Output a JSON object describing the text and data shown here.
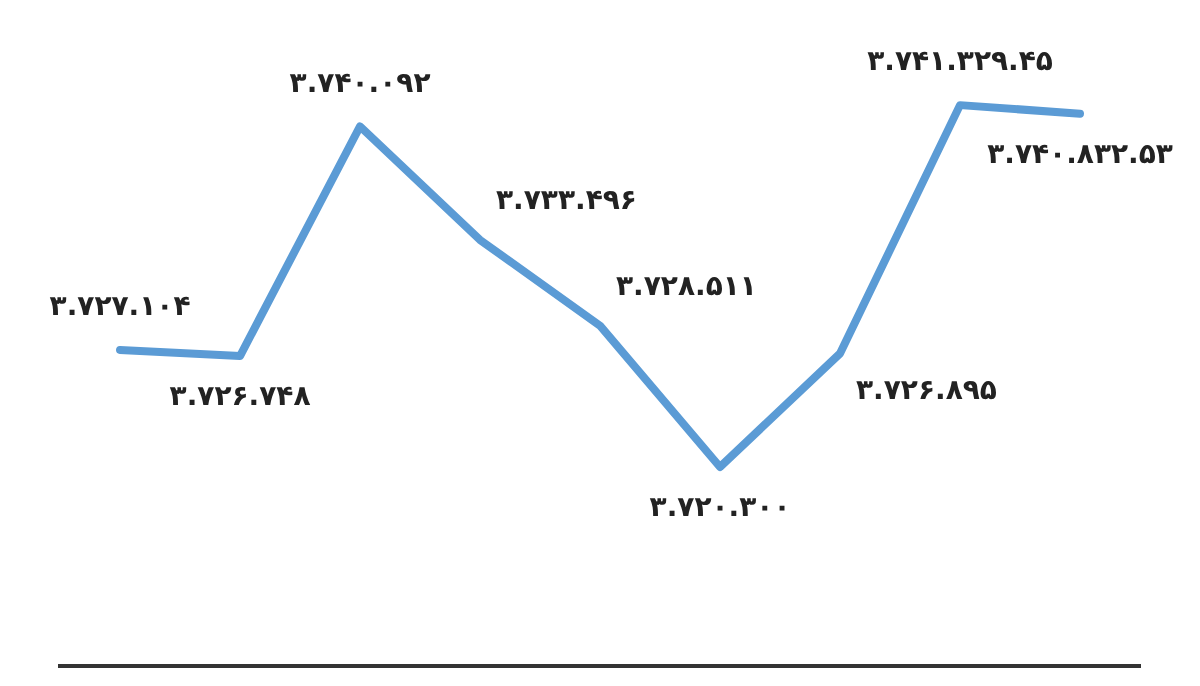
{
  "chart_data": {
    "type": "line",
    "categories": [
      null,
      null,
      null,
      null,
      null,
      null,
      null,
      null,
      null
    ],
    "series": [
      {
        "color": "#5b9bd5",
        "values": [
          3727104,
          3726748,
          3740092,
          3733496,
          3728511,
          3720300,
          3726895,
          3741329.45,
          3740832.53
        ],
        "value_labels": [
          "۳.۷۲۷.۱۰۴",
          "۳.۷۲۶.۷۴۸",
          "۳.۷۴۰.۰۹۲",
          "۳.۷۳۳.۴۹۶",
          "۳.۷۲۸.۵۱۱",
          "۳.۷۲۰.۳۰۰",
          "۳.۷۲۶.۸۹۵",
          "۳.۷۴۱.۳۲۹.۴۵",
          "۳.۷۴۰.۸۳۲.۵۳"
        ]
      }
    ],
    "legend": false,
    "tick_labels": false,
    "marker": "none",
    "line_style": "solid"
  }
}
